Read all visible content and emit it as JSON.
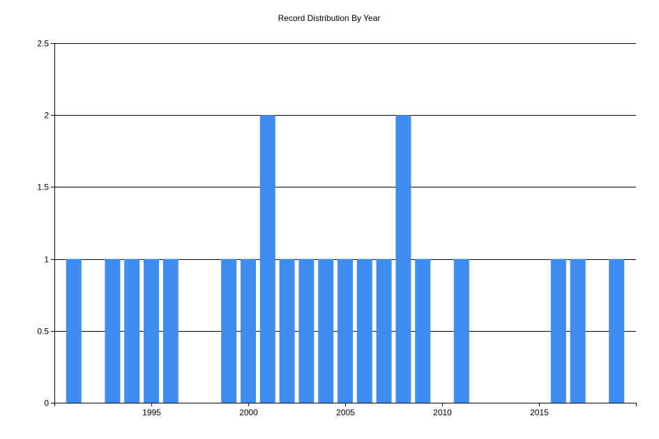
{
  "chart_data": {
    "type": "bar",
    "title": "Record Distribution By Year",
    "xlabel": "",
    "ylabel": "",
    "x": [
      1991,
      1993,
      1994,
      1995,
      1996,
      1999,
      2000,
      2001,
      2002,
      2003,
      2004,
      2005,
      2006,
      2007,
      2008,
      2009,
      2011,
      2016,
      2017,
      2019
    ],
    "values": [
      1,
      1,
      1,
      1,
      1,
      1,
      1,
      2,
      1,
      1,
      1,
      1,
      1,
      1,
      2,
      1,
      1,
      1,
      1,
      1
    ],
    "xlim": [
      1990,
      2020
    ],
    "ylim": [
      0,
      2.5
    ],
    "x_ticks": [
      1995,
      2000,
      2005,
      2010,
      2015
    ],
    "y_ticks": [
      "0",
      "0.5",
      "1",
      "1.5",
      "2",
      "2.5"
    ],
    "grid": "horizontal",
    "legend": "none",
    "colors": {
      "bar": "#418CF0",
      "grid": "#000000",
      "axis": "#000000",
      "text": "#000000"
    }
  }
}
